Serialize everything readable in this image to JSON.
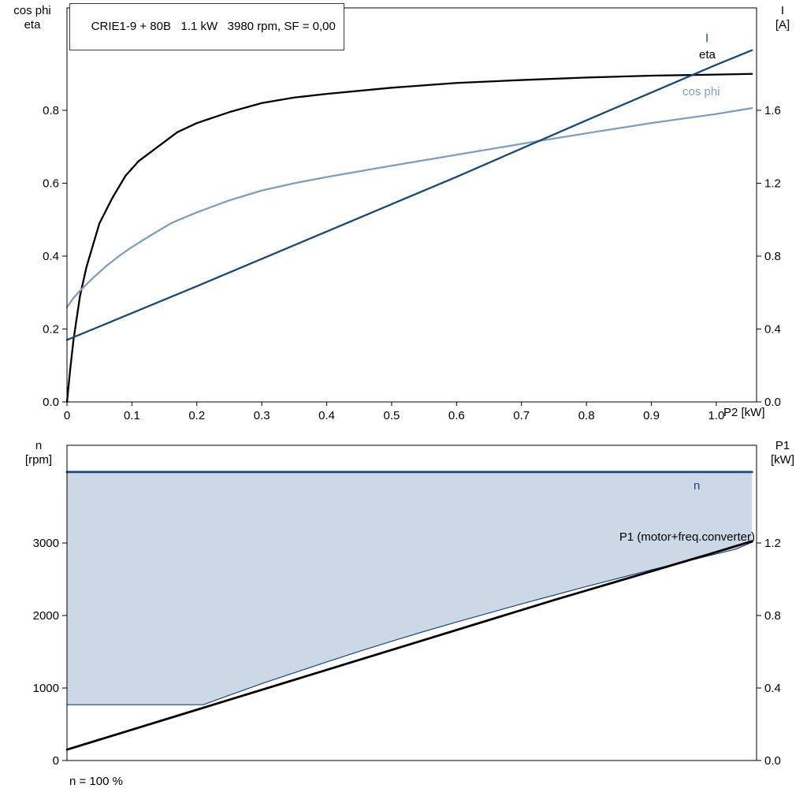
{
  "colors": {
    "dark_blue": "#17497b",
    "steel_blue": "#7e9fc1",
    "black": "#000000",
    "area_fill": "#ccd8e6",
    "frame": "#000000",
    "background": "#ffffff"
  },
  "curve_labels": {
    "i": "I",
    "eta": "eta",
    "cos_phi": "cos phi",
    "n": "n",
    "p1": "P1 (motor+freq.converter)"
  },
  "chart_data": [
    {
      "id": "top",
      "type": "line",
      "title": "CRIE1-9 + 80B   1.1 kW   3980 rpm, SF = 0,00",
      "x_label": "P2 [kW]",
      "x_range": [
        0,
        1.062
      ],
      "x_ticks": [
        0,
        0.1,
        0.2,
        0.3,
        0.4,
        0.5,
        0.6,
        0.7,
        0.8,
        0.9,
        1.0
      ],
      "x_tick_labels": [
        "0",
        "0.1",
        "0.2",
        "0.3",
        "0.4",
        "0.5",
        "0.6",
        "0.7",
        "0.8",
        "0.9",
        "1.0"
      ],
      "grid": false,
      "left_axis": {
        "label_lines": [
          "cos phi",
          "eta"
        ],
        "range": [
          0,
          1.081
        ],
        "ticks": [
          0,
          0.2,
          0.4,
          0.6,
          0.8
        ],
        "tick_labels": [
          "0.0",
          "0.2",
          "0.4",
          "0.6",
          "0.8"
        ]
      },
      "right_axis": {
        "label_lines": [
          "I",
          "[A]"
        ],
        "range": [
          0,
          2.162
        ],
        "ticks": [
          0,
          0.4,
          0.8,
          1.2,
          1.6
        ],
        "tick_labels": [
          "0.0",
          "0.4",
          "0.8",
          "1.2",
          "1.6"
        ]
      },
      "series": [
        {
          "name": "eta",
          "axis": "left",
          "color": "#000000",
          "width": 2.3,
          "x": [
            0,
            0.005,
            0.01,
            0.02,
            0.03,
            0.04,
            0.05,
            0.07,
            0.09,
            0.11,
            0.14,
            0.17,
            0.2,
            0.25,
            0.3,
            0.35,
            0.4,
            0.5,
            0.6,
            0.7,
            0.8,
            0.9,
            1.0,
            1.055
          ],
          "y": [
            0,
            0.09,
            0.17,
            0.29,
            0.37,
            0.43,
            0.49,
            0.56,
            0.62,
            0.66,
            0.7,
            0.74,
            0.765,
            0.795,
            0.82,
            0.835,
            0.845,
            0.862,
            0.875,
            0.883,
            0.89,
            0.895,
            0.898,
            0.9
          ]
        },
        {
          "name": "cos phi",
          "axis": "left",
          "color": "#7e9fc1",
          "width": 2.3,
          "x": [
            0,
            0.01,
            0.02,
            0.04,
            0.06,
            0.08,
            0.1,
            0.13,
            0.16,
            0.2,
            0.25,
            0.3,
            0.35,
            0.4,
            0.5,
            0.6,
            0.7,
            0.8,
            0.9,
            1.0,
            1.055
          ],
          "y": [
            0.26,
            0.285,
            0.305,
            0.34,
            0.372,
            0.4,
            0.425,
            0.458,
            0.49,
            0.52,
            0.553,
            0.58,
            0.6,
            0.617,
            0.648,
            0.678,
            0.708,
            0.737,
            0.765,
            0.79,
            0.806
          ]
        },
        {
          "name": "I",
          "axis": "right",
          "color": "#17497b",
          "width": 2.3,
          "x": [
            0,
            0.2,
            0.4,
            0.6,
            0.8,
            1.0,
            1.055
          ],
          "y": [
            0.34,
            0.635,
            0.935,
            1.235,
            1.545,
            1.85,
            1.93
          ]
        }
      ]
    },
    {
      "id": "bottom",
      "type": "line",
      "note": "n = 100 %",
      "x_range": [
        0,
        1.062
      ],
      "x_ticks": [],
      "x_tick_labels": [],
      "grid": false,
      "left_axis": {
        "label_lines": [
          "n",
          "[rpm]"
        ],
        "range": [
          0,
          4348
        ],
        "ticks": [
          0,
          1000,
          2000,
          3000
        ],
        "tick_labels": [
          "0",
          "1000",
          "2000",
          "3000"
        ]
      },
      "right_axis": {
        "label_lines": [
          "P1",
          "[kW]"
        ],
        "range": [
          0,
          1.7392
        ],
        "ticks": [
          0,
          0.4,
          0.8,
          1.2
        ],
        "tick_labels": [
          "0.0",
          "0.4",
          "0.8",
          "1.2"
        ]
      },
      "area": {
        "top": "n",
        "bottom": "n min",
        "fill": "#ccd8e6"
      },
      "series": [
        {
          "name": "n min",
          "axis": "left",
          "color": "#17497b",
          "width": 1.2,
          "x": [
            0,
            0.21,
            0.25,
            0.3,
            0.35,
            0.4,
            0.45,
            0.5,
            0.55,
            0.6,
            0.65,
            0.7,
            0.75,
            0.8,
            0.85,
            0.9,
            0.95,
            1.0,
            1.03,
            1.055
          ],
          "y": [
            770,
            770,
            900,
            1060,
            1210,
            1360,
            1505,
            1645,
            1780,
            1910,
            2035,
            2160,
            2280,
            2400,
            2515,
            2630,
            2740,
            2850,
            2915,
            3010
          ]
        },
        {
          "name": "n",
          "axis": "left",
          "color": "#17497b",
          "width": 2.8,
          "x": [
            0,
            1.055
          ],
          "y": [
            3980,
            3980
          ]
        },
        {
          "name": "P1",
          "axis": "right",
          "color": "#000000",
          "width": 2.8,
          "x": [
            0,
            0.25,
            0.5,
            0.75,
            1.0,
            1.055
          ],
          "y": [
            0.06,
            0.335,
            0.61,
            0.885,
            1.15,
            1.21
          ]
        }
      ]
    }
  ]
}
